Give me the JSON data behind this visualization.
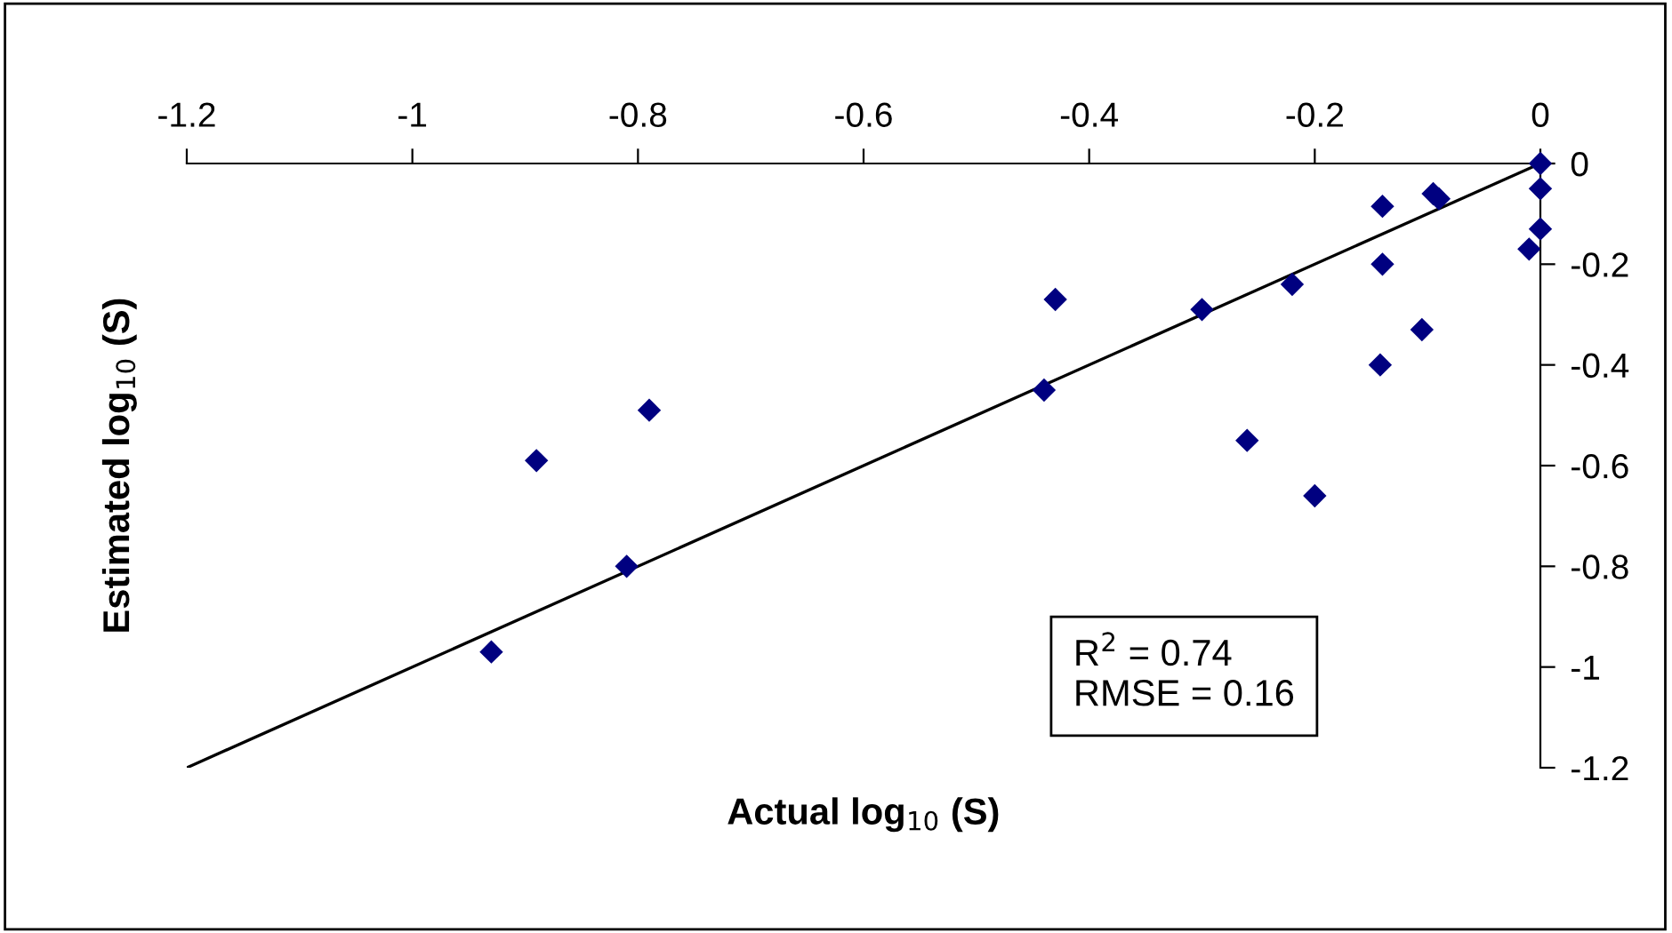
{
  "chart_data": {
    "type": "scatter",
    "xlabel": "Actual log$_{10}$ (S)",
    "ylabel": "Estimated log$_{10}$ (S)",
    "xlim": [
      -1.2,
      0
    ],
    "xticks": [
      -1.2,
      -1,
      -0.8,
      -0.6,
      -0.4,
      -0.2,
      0
    ],
    "ylim": [
      -1.2,
      0
    ],
    "yticks": [
      -1.2,
      -1,
      -0.8,
      -0.6,
      -0.4,
      -0.2,
      0
    ],
    "grid": false,
    "legend": false,
    "series": [
      {
        "marker": "diamond",
        "color": "#000080",
        "x": [
          0,
          0,
          0,
          -0.01,
          -0.095,
          -0.09,
          -0.14,
          -0.14,
          -0.105,
          -0.142,
          -0.22,
          -0.3,
          -0.26,
          -0.2,
          -0.43,
          -0.44,
          -0.79,
          -0.89,
          -0.81,
          -0.93
        ],
        "values": [
          0,
          -0.05,
          -0.13,
          -0.17,
          -0.06,
          -0.07,
          -0.085,
          -0.2,
          -0.33,
          -0.4,
          -0.24,
          -0.29,
          -0.55,
          -0.66,
          -0.27,
          -0.45,
          -0.49,
          -0.59,
          -0.8,
          -0.97
        ]
      },
      {
        "type": "line",
        "marker": "none",
        "color": "#000000",
        "x": [
          -1.2,
          0
        ],
        "values": [
          -1.2,
          0
        ]
      }
    ],
    "annotations": [
      "R$^{2}$ = 0.74\nRMSE = 0.16"
    ]
  }
}
